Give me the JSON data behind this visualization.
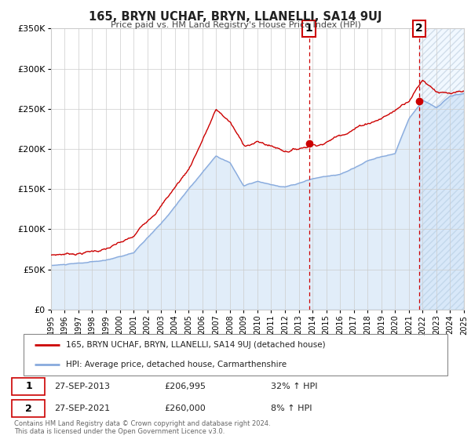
{
  "title": "165, BRYN UCHAF, BRYN, LLANELLI, SA14 9UJ",
  "subtitle": "Price paid vs. HM Land Registry's House Price Index (HPI)",
  "xlim": [
    1995,
    2025
  ],
  "ylim": [
    0,
    350000
  ],
  "yticks": [
    0,
    50000,
    100000,
    150000,
    200000,
    250000,
    300000,
    350000
  ],
  "ytick_labels": [
    "£0",
    "£50K",
    "£100K",
    "£150K",
    "£200K",
    "£250K",
    "£300K",
    "£350K"
  ],
  "xticks": [
    1995,
    1996,
    1997,
    1998,
    1999,
    2000,
    2001,
    2002,
    2003,
    2004,
    2005,
    2006,
    2007,
    2008,
    2009,
    2010,
    2011,
    2012,
    2013,
    2014,
    2015,
    2016,
    2017,
    2018,
    2019,
    2020,
    2021,
    2022,
    2023,
    2024,
    2025
  ],
  "marker1_x": 2013.75,
  "marker1_y": 206995,
  "marker2_x": 2021.75,
  "marker2_y": 260000,
  "property_color": "#cc0000",
  "hpi_color": "#aaccee",
  "hpi_line_color": "#88aadd",
  "shaded_color": "#ddeeff",
  "legend_label_property": "165, BRYN UCHAF, BRYN, LLANELLI, SA14 9UJ (detached house)",
  "legend_label_hpi": "HPI: Average price, detached house, Carmarthenshire",
  "marker1_date": "27-SEP-2013",
  "marker1_price": "£206,995",
  "marker1_hpi": "32% ↑ HPI",
  "marker2_date": "27-SEP-2021",
  "marker2_price": "£260,000",
  "marker2_hpi": "8% ↑ HPI",
  "footer_line1": "Contains HM Land Registry data © Crown copyright and database right 2024.",
  "footer_line2": "This data is licensed under the Open Government Licence v3.0."
}
